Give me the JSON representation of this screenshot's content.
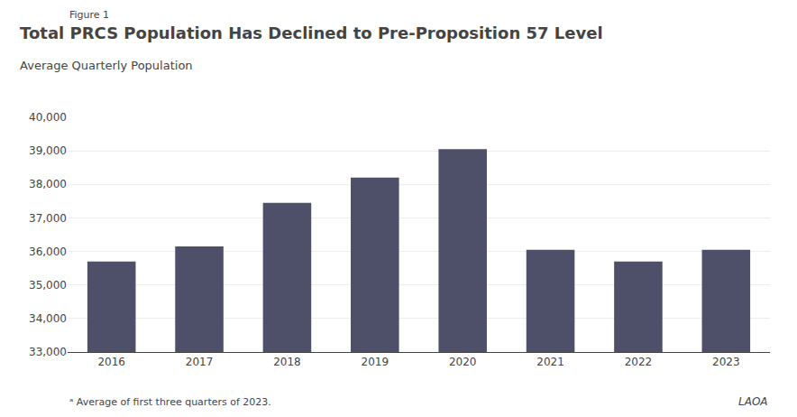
{
  "chart_data": {
    "type": "bar",
    "title": "Total PRCS Population Has Declined to Pre-Proposition 57 Level",
    "subtitle": "Average Quarterly Population",
    "annotations": [
      "Figure 1",
      "ᵃ Average of first three quarters of 2023.",
      "LAOA"
    ],
    "categories": [
      "2016",
      "2017",
      "2018",
      "2019",
      "2020",
      "2021",
      "2022",
      "2023"
    ],
    "values": [
      35700,
      36150,
      37450,
      38200,
      39050,
      36050,
      35700,
      36050
    ],
    "color": "#4d5068",
    "ylim": [
      33000,
      40000
    ],
    "yticks": [
      {
        "value": 33000,
        "label": "33,000"
      },
      {
        "value": 34000,
        "label": "34,000"
      },
      {
        "value": 35000,
        "label": "35,000"
      },
      {
        "value": 36000,
        "label": "36,000"
      },
      {
        "value": 37000,
        "label": "37,000"
      },
      {
        "value": 38000,
        "label": "38,000"
      },
      {
        "value": 39000,
        "label": "39,000"
      },
      {
        "value": 40000,
        "label": "40,000"
      }
    ],
    "grid": true
  }
}
